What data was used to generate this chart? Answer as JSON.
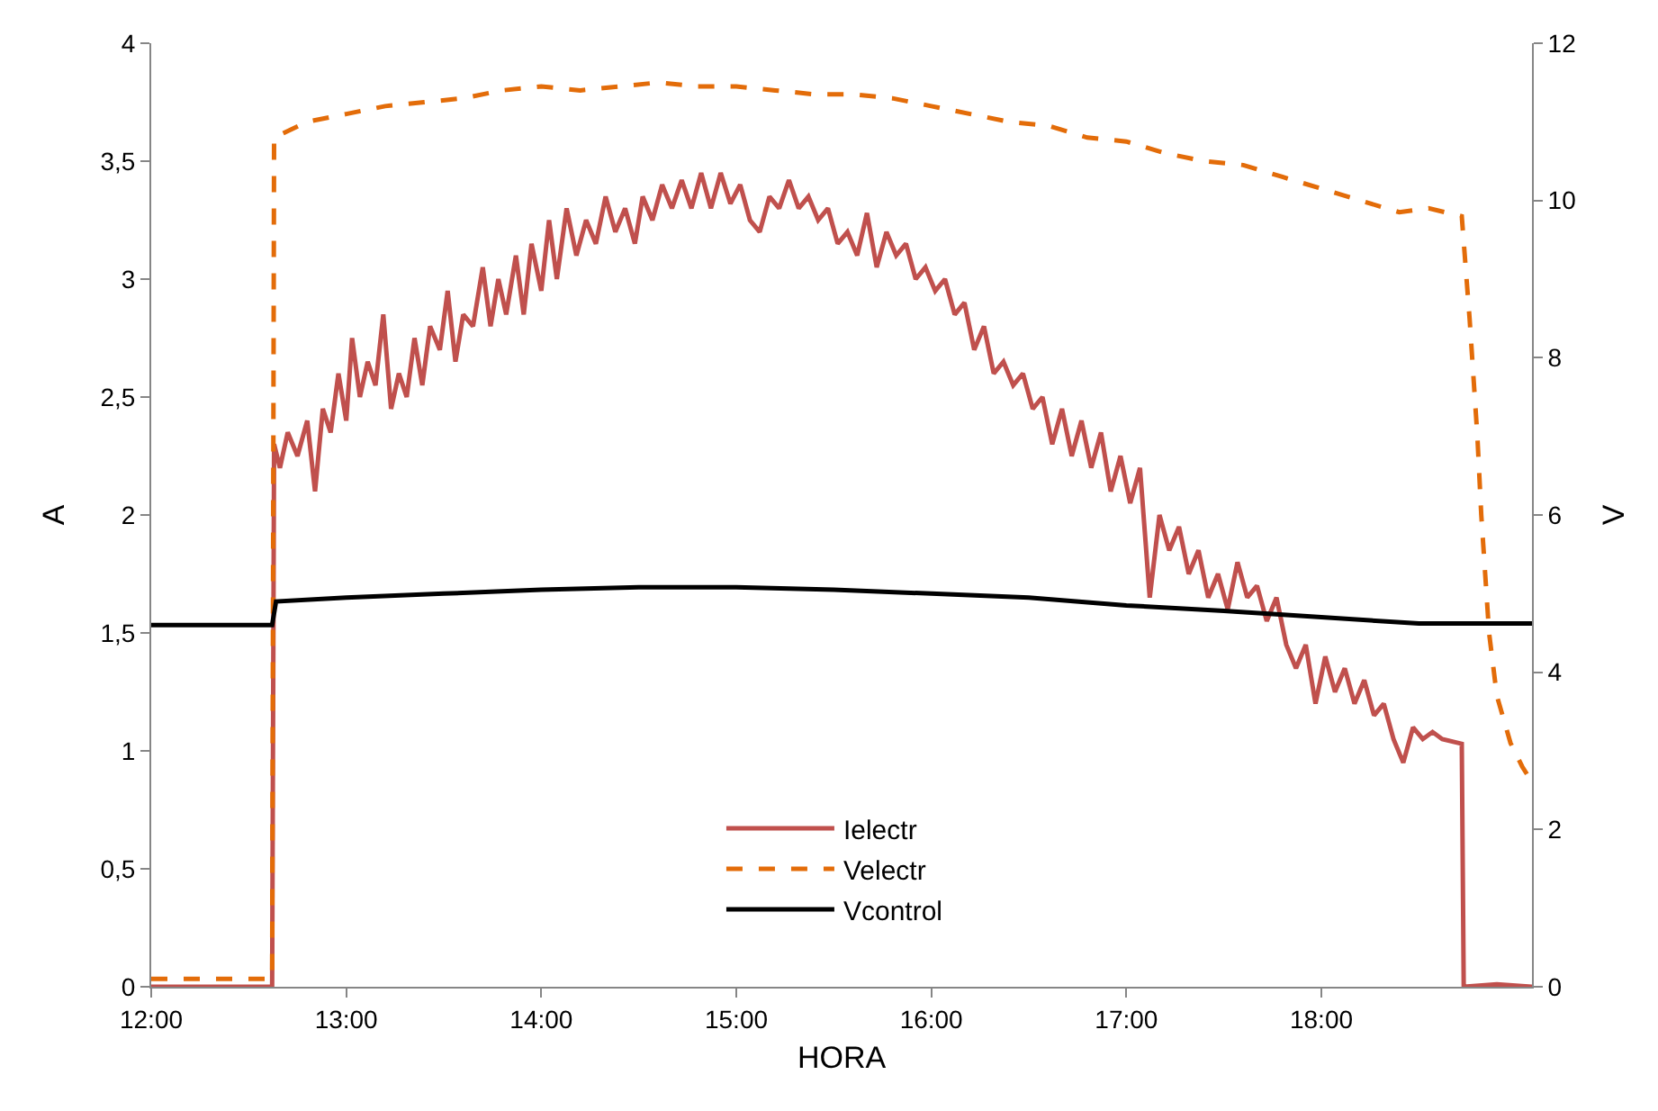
{
  "chart_data": {
    "type": "line",
    "xlabel": "HORA",
    "ylabel": "A",
    "y2label": "V",
    "xlim": [
      12,
      19.08
    ],
    "xticks": [
      {
        "value": 12,
        "label": "12:00"
      },
      {
        "value": 13,
        "label": "13:00"
      },
      {
        "value": 14,
        "label": "14:00"
      },
      {
        "value": 15,
        "label": "15:00"
      },
      {
        "value": 16,
        "label": "16:00"
      },
      {
        "value": 17,
        "label": "17:00"
      },
      {
        "value": 18,
        "label": "18:00"
      }
    ],
    "ylim": [
      0,
      4
    ],
    "yticks": [
      0,
      {
        "value": 0.5,
        "label": "0,5"
      },
      1,
      {
        "value": 1.5,
        "label": "1,5"
      },
      2,
      {
        "value": 2.5,
        "label": "2,5"
      },
      3,
      {
        "value": 3.5,
        "label": "3,5"
      },
      4
    ],
    "y2lim": [
      0,
      12
    ],
    "y2ticks": [
      0,
      2,
      4,
      6,
      8,
      10,
      12
    ],
    "legend": "bottom",
    "series": [
      {
        "name": "Ielectr",
        "color": "#c0504d",
        "line_style": "solid",
        "x": [
          12.0,
          12.62,
          12.63,
          12.66,
          12.7,
          12.75,
          12.8,
          12.84,
          12.88,
          12.92,
          12.96,
          13.0,
          13.03,
          13.07,
          13.11,
          13.15,
          13.19,
          13.23,
          13.27,
          13.31,
          13.35,
          13.39,
          13.43,
          13.48,
          13.52,
          13.56,
          13.6,
          13.65,
          13.7,
          13.74,
          13.78,
          13.82,
          13.87,
          13.91,
          13.95,
          14.0,
          14.04,
          14.08,
          14.13,
          14.18,
          14.23,
          14.28,
          14.33,
          14.38,
          14.43,
          14.48,
          14.52,
          14.57,
          14.62,
          14.67,
          14.72,
          14.77,
          14.82,
          14.87,
          14.92,
          14.97,
          15.02,
          15.07,
          15.12,
          15.17,
          15.22,
          15.27,
          15.32,
          15.37,
          15.42,
          15.47,
          15.52,
          15.57,
          15.62,
          15.67,
          15.72,
          15.77,
          15.82,
          15.87,
          15.92,
          15.97,
          16.02,
          16.07,
          16.12,
          16.17,
          16.22,
          16.27,
          16.32,
          16.37,
          16.42,
          16.47,
          16.52,
          16.57,
          16.62,
          16.67,
          16.72,
          16.77,
          16.82,
          16.87,
          16.92,
          16.97,
          17.02,
          17.07,
          17.12,
          17.17,
          17.22,
          17.27,
          17.32,
          17.37,
          17.42,
          17.47,
          17.52,
          17.57,
          17.62,
          17.67,
          17.72,
          17.77,
          17.82,
          17.87,
          17.92,
          17.97,
          18.02,
          18.07,
          18.12,
          18.17,
          18.22,
          18.27,
          18.32,
          18.37,
          18.42,
          18.47,
          18.52,
          18.57,
          18.62,
          18.72,
          18.73,
          18.9,
          19.08
        ],
        "values": [
          0.0,
          0.0,
          2.3,
          2.2,
          2.35,
          2.25,
          2.4,
          2.1,
          2.45,
          2.35,
          2.6,
          2.4,
          2.75,
          2.5,
          2.65,
          2.55,
          2.85,
          2.45,
          2.6,
          2.5,
          2.75,
          2.55,
          2.8,
          2.7,
          2.95,
          2.65,
          2.85,
          2.8,
          3.05,
          2.8,
          3.0,
          2.85,
          3.1,
          2.85,
          3.15,
          2.95,
          3.25,
          3.0,
          3.3,
          3.1,
          3.25,
          3.15,
          3.35,
          3.2,
          3.3,
          3.15,
          3.35,
          3.25,
          3.4,
          3.3,
          3.42,
          3.3,
          3.45,
          3.3,
          3.45,
          3.32,
          3.4,
          3.25,
          3.2,
          3.35,
          3.3,
          3.42,
          3.3,
          3.35,
          3.25,
          3.3,
          3.15,
          3.2,
          3.1,
          3.28,
          3.05,
          3.2,
          3.1,
          3.15,
          3.0,
          3.05,
          2.95,
          3.0,
          2.85,
          2.9,
          2.7,
          2.8,
          2.6,
          2.65,
          2.55,
          2.6,
          2.45,
          2.5,
          2.3,
          2.45,
          2.25,
          2.4,
          2.2,
          2.35,
          2.1,
          2.25,
          2.05,
          2.2,
          1.65,
          2.0,
          1.85,
          1.95,
          1.75,
          1.85,
          1.65,
          1.75,
          1.6,
          1.8,
          1.65,
          1.7,
          1.55,
          1.65,
          1.45,
          1.35,
          1.45,
          1.2,
          1.4,
          1.25,
          1.35,
          1.2,
          1.3,
          1.15,
          1.2,
          1.05,
          0.95,
          1.1,
          1.05,
          1.08,
          1.05,
          1.03,
          0.0,
          0.01,
          0.0
        ]
      },
      {
        "name": "Velectr",
        "color": "#e36c09",
        "line_style": "dashed",
        "axis": "y2",
        "x": [
          12.0,
          12.62,
          12.63,
          12.8,
          13.0,
          13.2,
          13.4,
          13.6,
          13.8,
          14.0,
          14.2,
          14.4,
          14.6,
          14.8,
          15.0,
          15.2,
          15.4,
          15.6,
          15.8,
          16.0,
          16.2,
          16.4,
          16.6,
          16.8,
          17.0,
          17.2,
          17.4,
          17.6,
          17.8,
          18.0,
          18.2,
          18.4,
          18.55,
          18.72,
          18.76,
          18.8,
          18.82,
          18.86,
          18.9,
          18.97,
          19.03,
          19.08
        ],
        "values": [
          0.1,
          0.1,
          10.8,
          11.0,
          11.1,
          11.2,
          11.25,
          11.3,
          11.4,
          11.45,
          11.4,
          11.45,
          11.5,
          11.45,
          11.45,
          11.4,
          11.35,
          11.35,
          11.3,
          11.2,
          11.1,
          11.0,
          10.95,
          10.8,
          10.75,
          10.6,
          10.5,
          10.45,
          10.3,
          10.15,
          10.0,
          9.85,
          9.9,
          9.8,
          8.5,
          7.0,
          6.0,
          4.5,
          3.7,
          3.1,
          2.8,
          2.6
        ]
      },
      {
        "name": "Vcontrol",
        "color": "#000000",
        "line_style": "solid",
        "axis": "y2",
        "x": [
          12.0,
          12.62,
          12.64,
          13.0,
          13.5,
          14.0,
          14.5,
          15.0,
          15.5,
          16.0,
          16.5,
          17.0,
          17.5,
          18.0,
          18.5,
          19.08
        ],
        "values": [
          4.6,
          4.6,
          4.9,
          4.95,
          5.0,
          5.05,
          5.08,
          5.08,
          5.05,
          5.0,
          4.95,
          4.85,
          4.78,
          4.7,
          4.62,
          4.62
        ]
      }
    ]
  }
}
